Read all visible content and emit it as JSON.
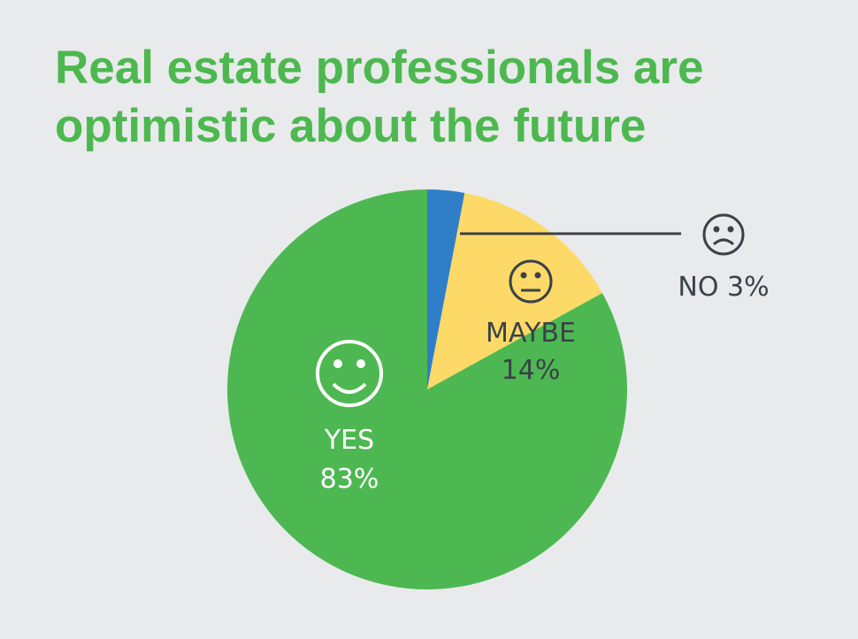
{
  "chart_data": {
    "type": "pie",
    "title": "Real estate professionals are optimistic about the future",
    "categories": [
      "NO",
      "MAYBE",
      "YES"
    ],
    "values": [
      3,
      14,
      83
    ],
    "value_labels": [
      "3%",
      "14%",
      "83%"
    ],
    "colors": [
      "#2f7fc8",
      "#fdd967",
      "#4db851"
    ]
  }
}
